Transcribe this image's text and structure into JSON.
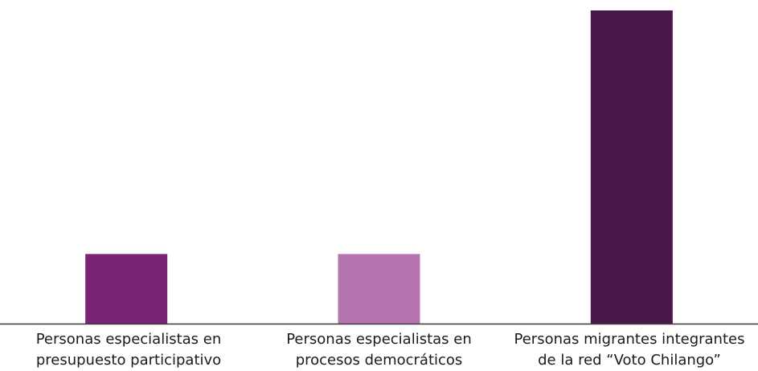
{
  "chart_data": {
    "type": "bar",
    "categories": [
      "Personas especialistas en\npresupuesto participativo",
      "Personas especialistas en\nprocesos democráticos",
      "Personas migrantes integrantes\nde la red “Voto Chilango”"
    ],
    "values": [
      2,
      2,
      9
    ],
    "colors": [
      "#7a2573",
      "#b574b0",
      "#4b1649"
    ]
  }
}
